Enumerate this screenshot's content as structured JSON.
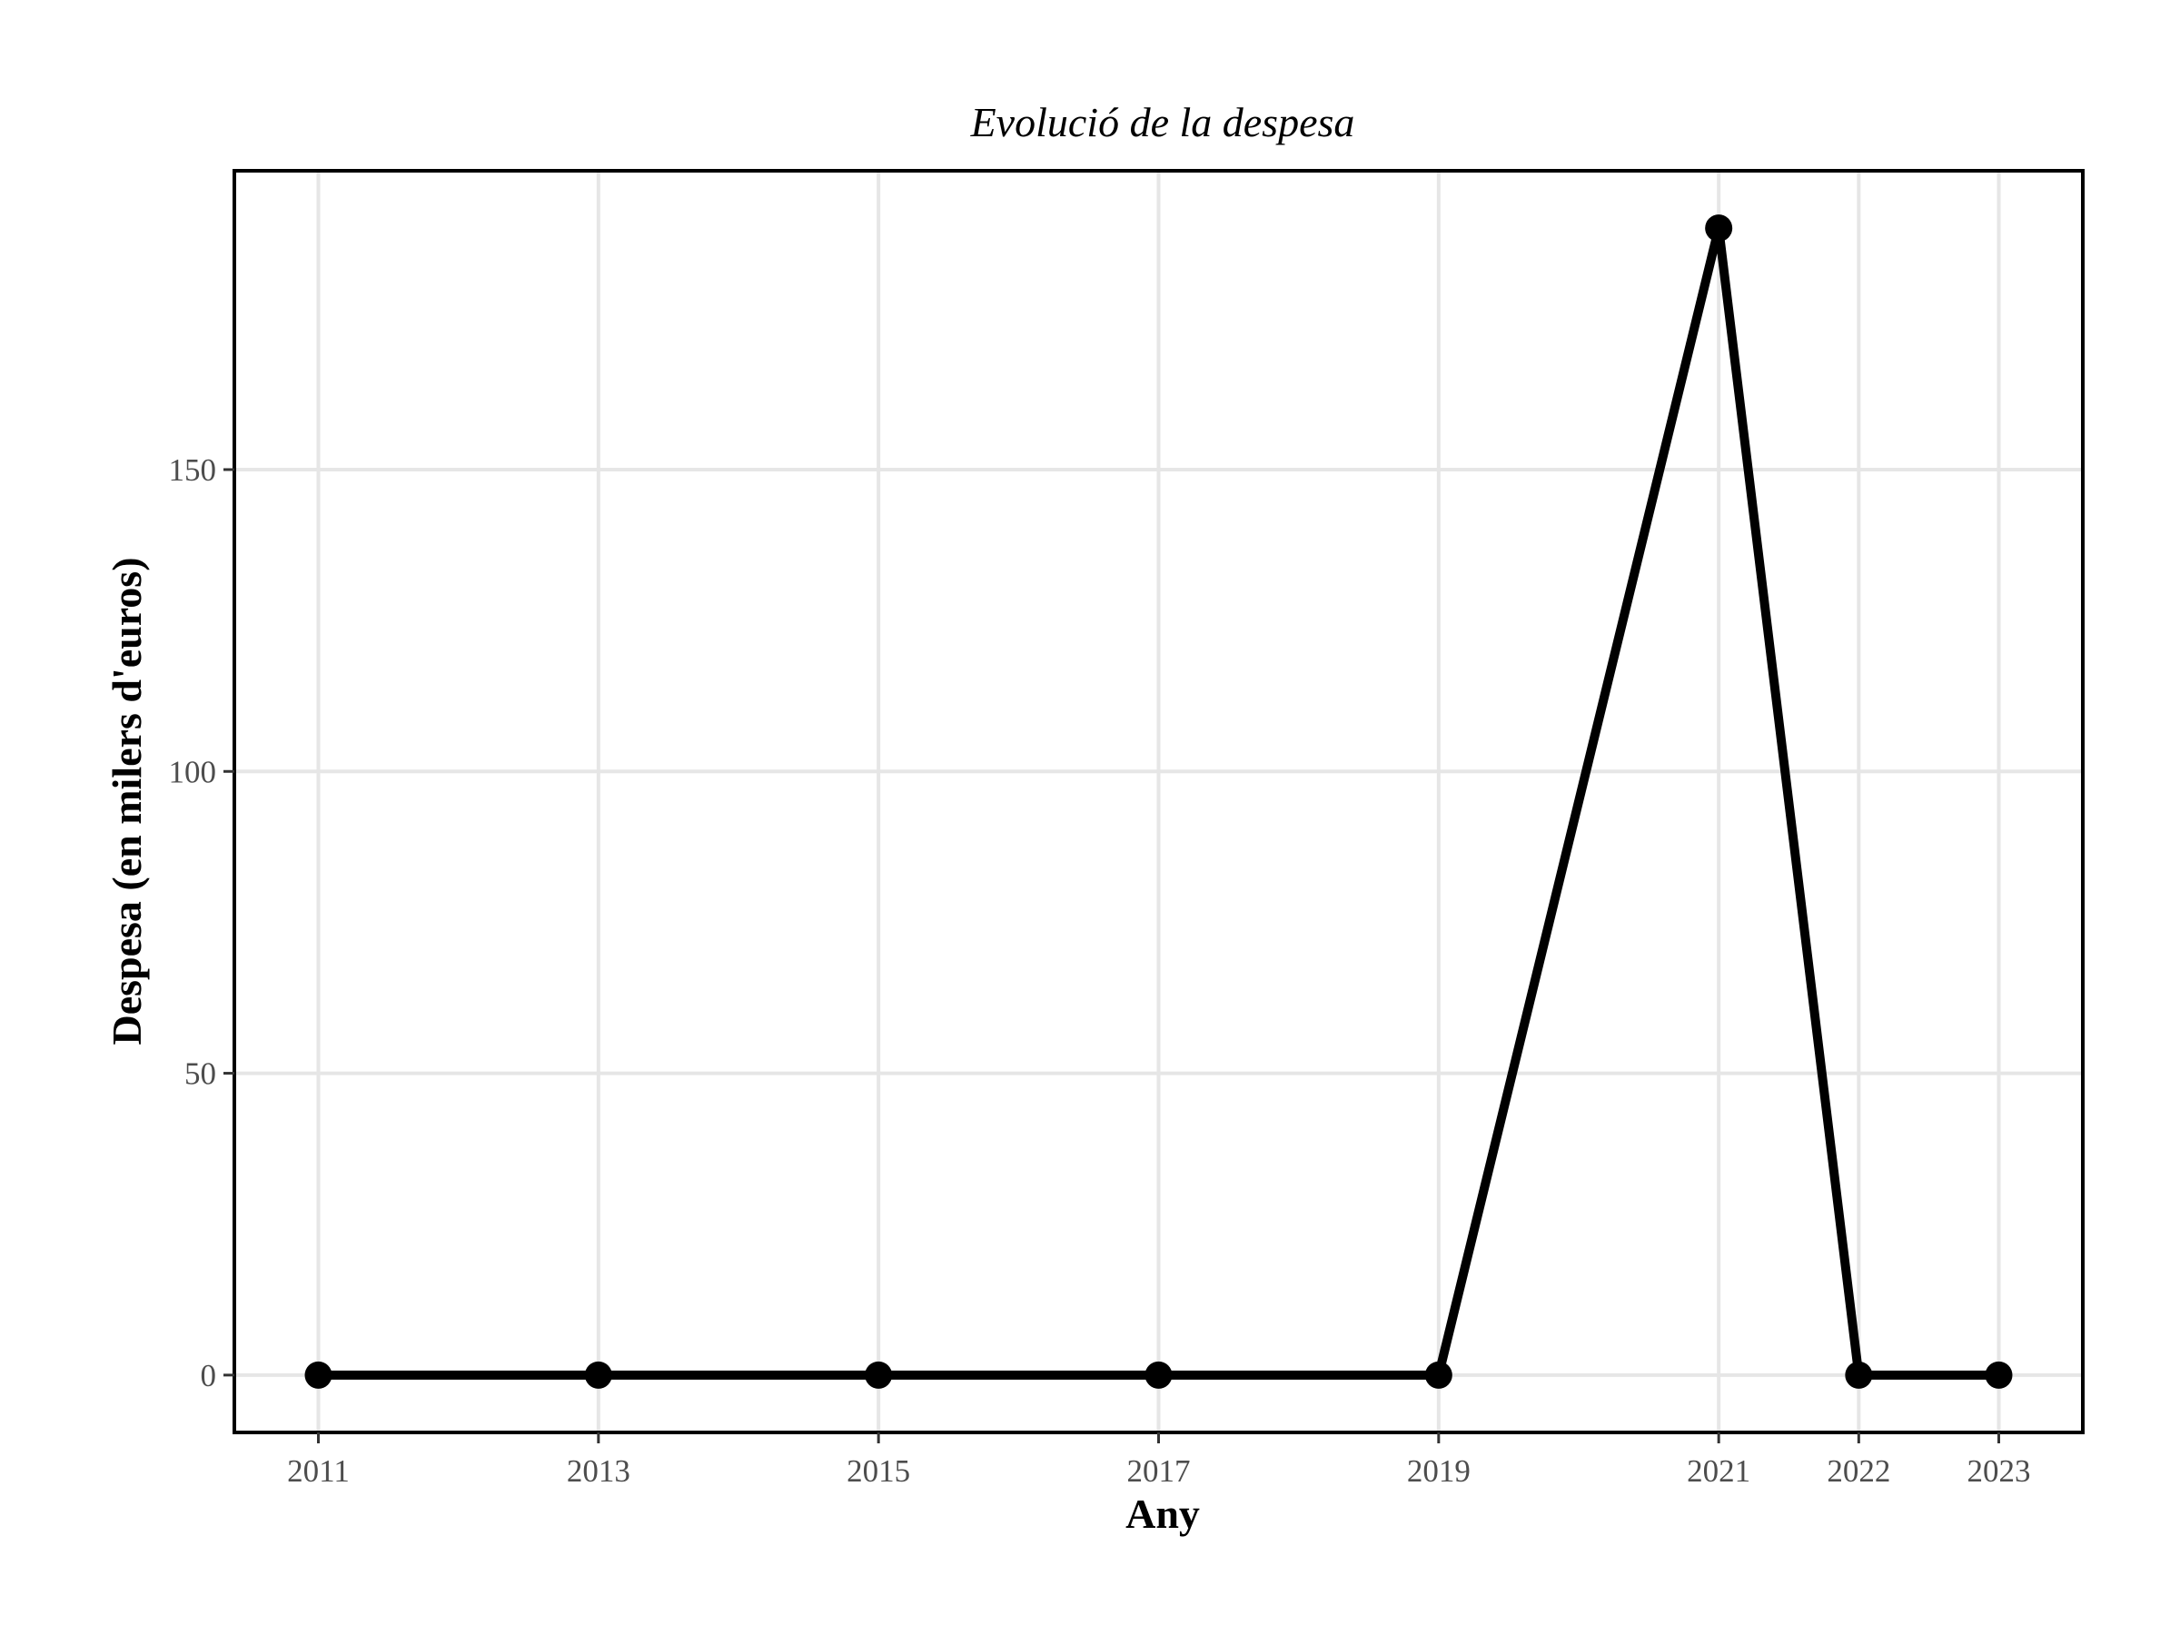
{
  "chart_data": {
    "type": "line",
    "title": "Evolució de la despesa",
    "xlabel": "Any",
    "ylabel": "Despesa (en milers d'euros)",
    "x": [
      2011,
      2013,
      2015,
      2017,
      2019,
      2021,
      2022,
      2023
    ],
    "x_ticks": [
      "2011",
      "2013",
      "2015",
      "2017",
      "2019",
      "2021",
      "2022",
      "2023"
    ],
    "values": [
      0,
      0,
      0,
      0,
      0,
      190,
      0,
      0
    ],
    "y_ticks": [
      0,
      50,
      100,
      150
    ],
    "xlim": [
      2010.4,
      2023.6
    ],
    "ylim": [
      -9.5,
      199.5
    ],
    "grid": true,
    "legend": "none",
    "colors": {
      "line": "#000000",
      "grid": "#e6e6e6",
      "tick_text": "#4d4d4d"
    }
  }
}
